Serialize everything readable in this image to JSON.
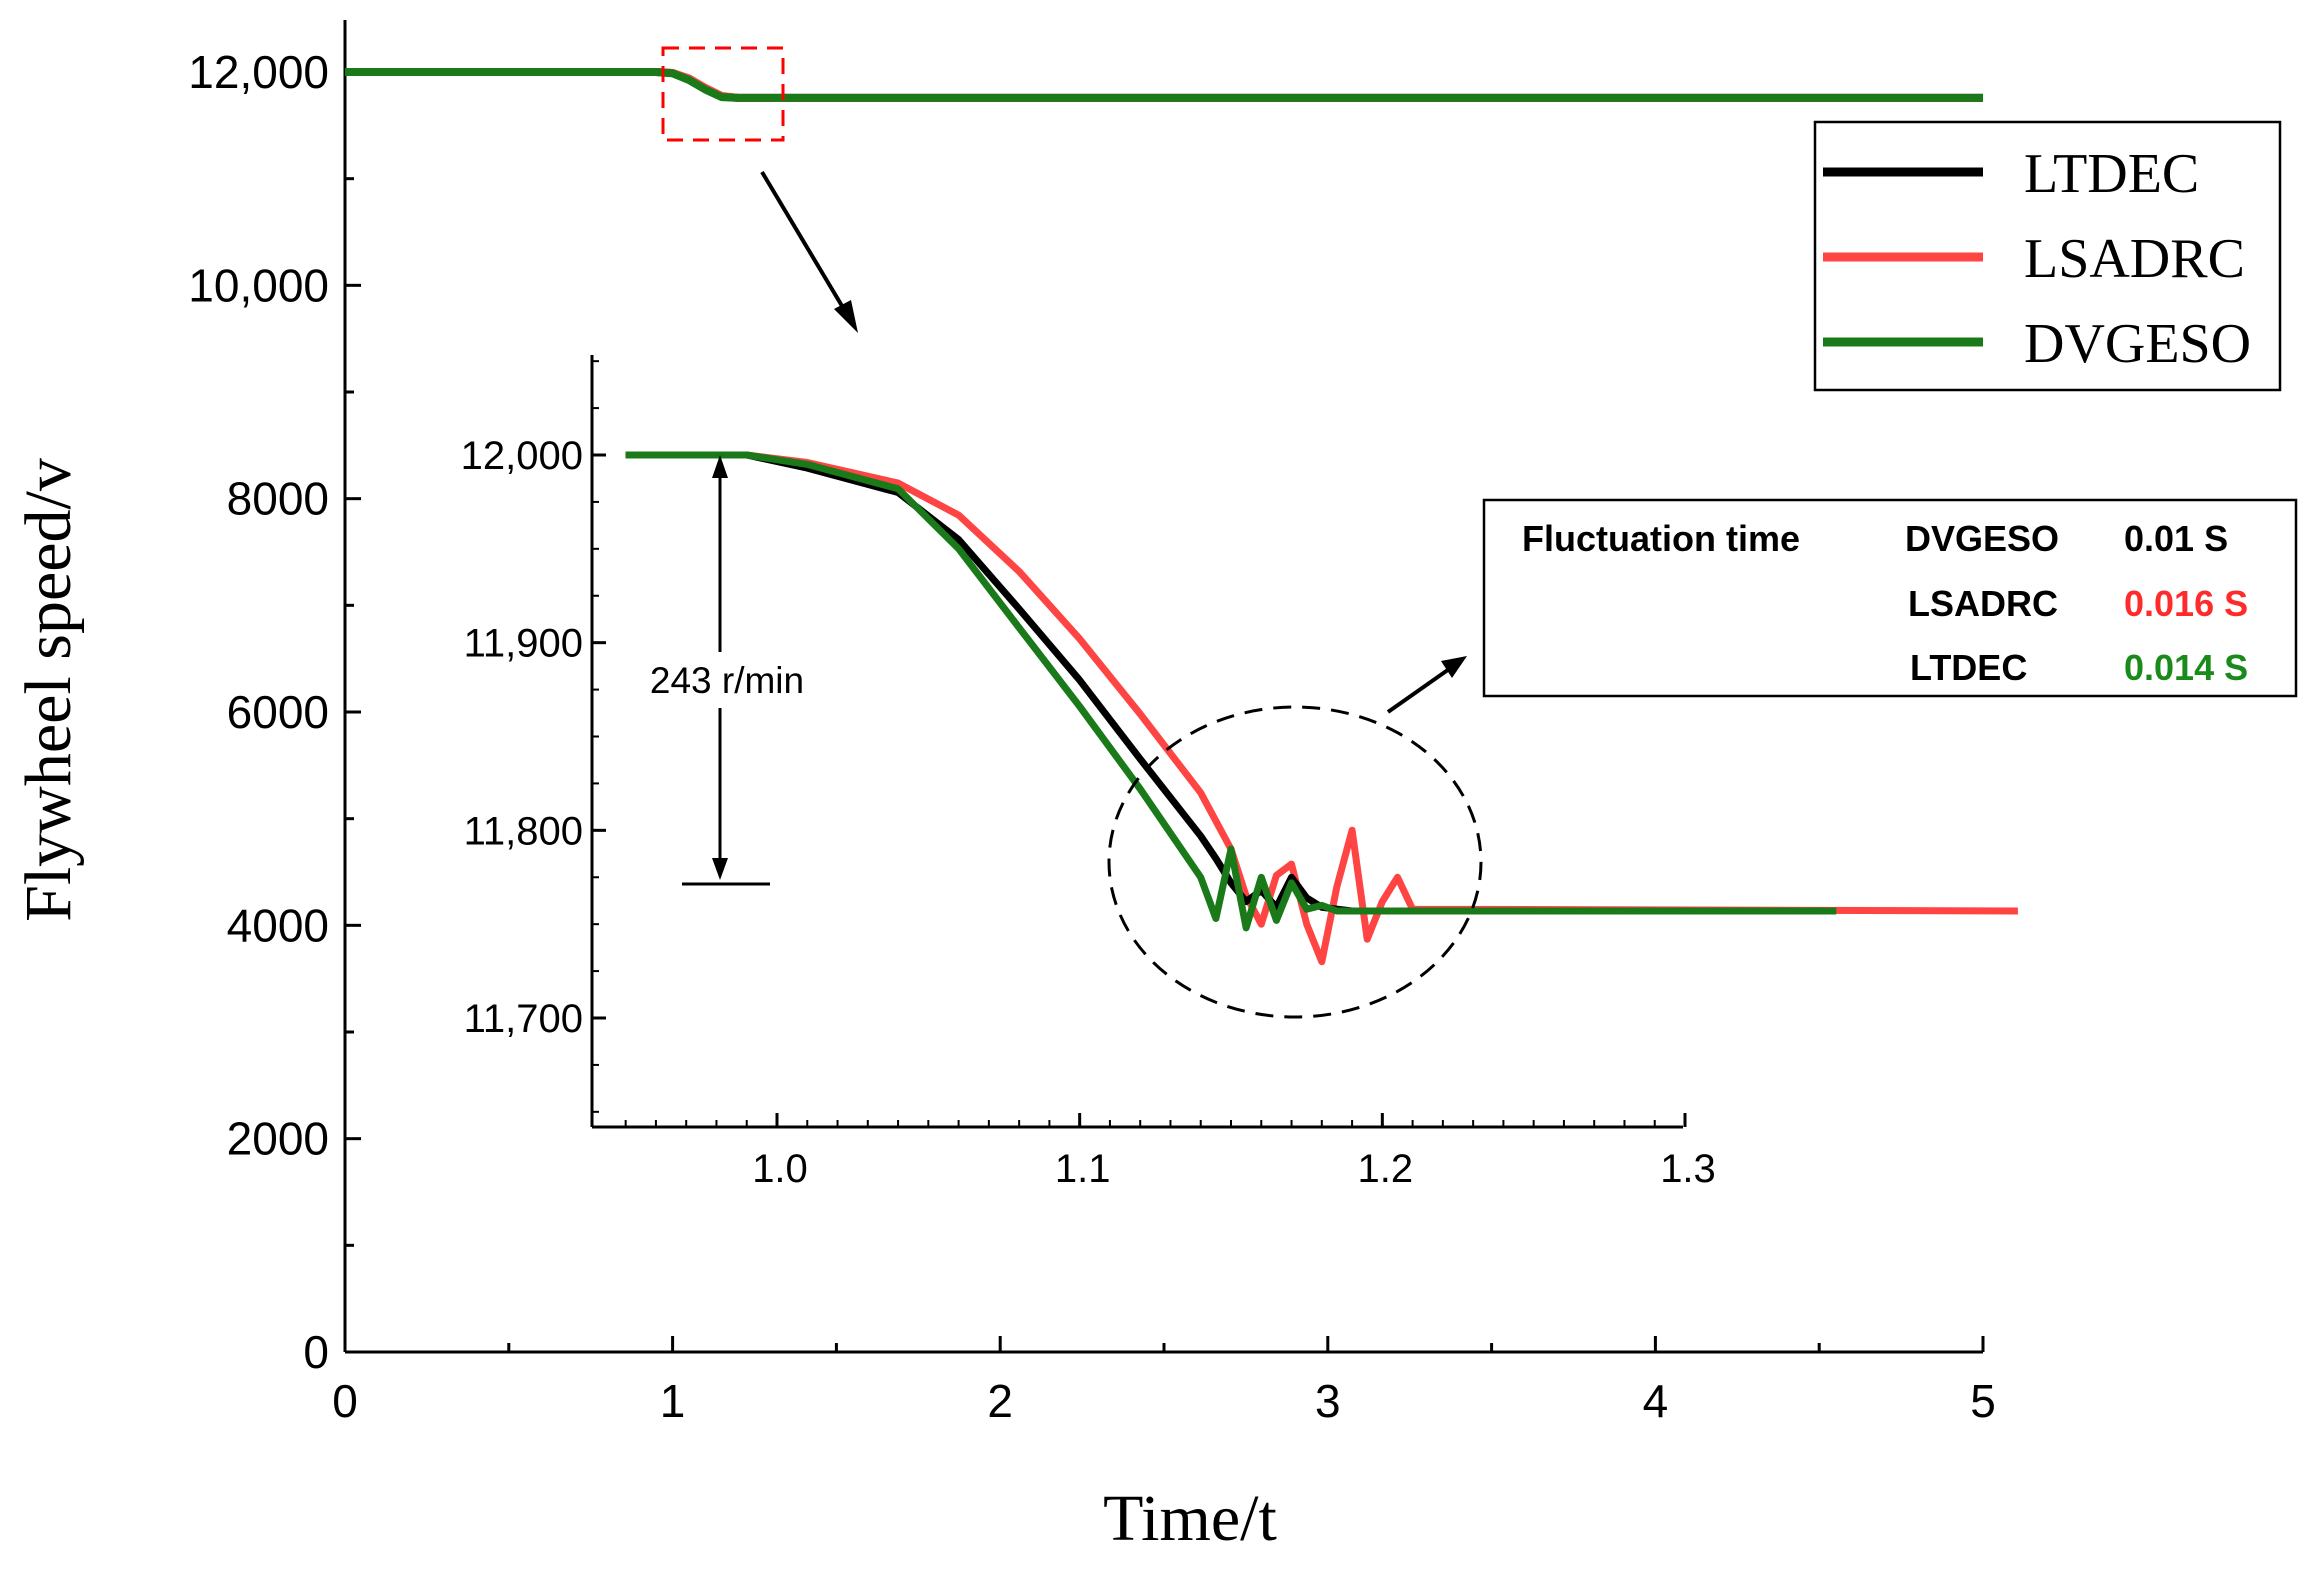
{
  "chart_data": [
    {
      "type": "line",
      "title": "",
      "xlabel": "Time/t",
      "ylabel": "Flywheel speed/v",
      "xlim": [
        0,
        5
      ],
      "ylim": [
        0,
        12500
      ],
      "x_ticks": [
        0,
        1,
        2,
        3,
        4,
        5
      ],
      "x_tick_labels": [
        "0",
        "1",
        "2",
        "3",
        "4",
        "5"
      ],
      "y_ticks": [
        0,
        2000,
        4000,
        6000,
        8000,
        10000,
        12000
      ],
      "y_tick_labels": [
        "0",
        "2000",
        "4000",
        "6000",
        "8000",
        "10,000",
        "12,000"
      ],
      "grid": false,
      "legend_position": "top-right",
      "legend": [
        "LTDEC",
        "LSADRC",
        "DVGESO"
      ],
      "series": [
        {
          "name": "LTDEC",
          "color": "#000000",
          "x": [
            0,
            0.95,
            1.0,
            1.05,
            1.1,
            1.15,
            1.2,
            5
          ],
          "y": [
            12000,
            12000,
            11990,
            11930,
            11840,
            11770,
            11757,
            11757
          ]
        },
        {
          "name": "LSADRC",
          "color": "#ff4444",
          "x": [
            0,
            0.95,
            1.0,
            1.05,
            1.1,
            1.15,
            1.2,
            5
          ],
          "y": [
            12000,
            12000,
            11992,
            11940,
            11850,
            11775,
            11757,
            11757
          ]
        },
        {
          "name": "DVGESO",
          "color": "#1a7a1a",
          "x": [
            0,
            0.95,
            1.0,
            1.05,
            1.1,
            1.15,
            1.2,
            5
          ],
          "y": [
            12000,
            12000,
            11988,
            11925,
            11835,
            11765,
            11757,
            11757
          ]
        }
      ],
      "zoom_box_label": "",
      "inset": {
        "xlim": [
          0.95,
          1.3
        ],
        "ylim": [
          11650,
          12050
        ],
        "x_ticks": [
          1.0,
          1.1,
          1.2,
          1.3
        ],
        "x_tick_labels": [
          "1.0",
          "1.1",
          "1.2",
          "1.3"
        ],
        "y_ticks": [
          11700,
          11800,
          11900,
          12000
        ],
        "y_tick_labels": [
          "11,700",
          "11,800",
          "11,900",
          "12,000"
        ],
        "annotation": "243 r/min",
        "series": [
          {
            "name": "LTDEC",
            "color": "#000000",
            "x": [
              0.95,
              0.99,
              1.01,
              1.04,
              1.06,
              1.08,
              1.1,
              1.12,
              1.14,
              1.145,
              1.15,
              1.155,
              1.16,
              1.165,
              1.17,
              1.175,
              1.18,
              1.19,
              1.27
            ],
            "y": [
              12000,
              12000,
              11993,
              11980,
              11955,
              11918,
              11880,
              11838,
              11797,
              11785,
              11772,
              11762,
              11768,
              11759,
              11775,
              11764,
              11759,
              11757,
              11757
            ]
          },
          {
            "name": "LSADRC",
            "color": "#ff4444",
            "x": [
              0.95,
              0.99,
              1.01,
              1.04,
              1.06,
              1.08,
              1.1,
              1.12,
              1.14,
              1.15,
              1.155,
              1.16,
              1.165,
              1.17,
              1.175,
              1.18,
              1.185,
              1.19,
              1.195,
              1.2,
              1.205,
              1.21,
              1.41
            ],
            "y": [
              12000,
              12000,
              11996,
              11985,
              11968,
              11938,
              11902,
              11862,
              11820,
              11790,
              11765,
              11750,
              11776,
              11782,
              11750,
              11730,
              11770,
              11800,
              11742,
              11762,
              11775,
              11758,
              11757
            ]
          },
          {
            "name": "DVGESO",
            "color": "#1a7a1a",
            "x": [
              0.95,
              0.99,
              1.01,
              1.04,
              1.06,
              1.08,
              1.1,
              1.12,
              1.14,
              1.145,
              1.15,
              1.155,
              1.16,
              1.165,
              1.17,
              1.175,
              1.18,
              1.185,
              1.19,
              1.35
            ],
            "y": [
              12000,
              12000,
              11995,
              11982,
              11950,
              11908,
              11866,
              11822,
              11775,
              11753,
              11790,
              11748,
              11775,
              11752,
              11772,
              11758,
              11760,
              11757,
              11757,
              11757
            ]
          }
        ]
      },
      "fluctuation_table": {
        "header": "Fluctuation time",
        "rows": [
          {
            "name": "DVGESO",
            "value": "0.01 S",
            "color": "#000000"
          },
          {
            "name": "LSADRC",
            "value": "0.016 S",
            "color": "#ff2a2a"
          },
          {
            "name": "LTDEC",
            "value": "0.014 S",
            "color": "#1a8a1a"
          }
        ]
      }
    }
  ]
}
